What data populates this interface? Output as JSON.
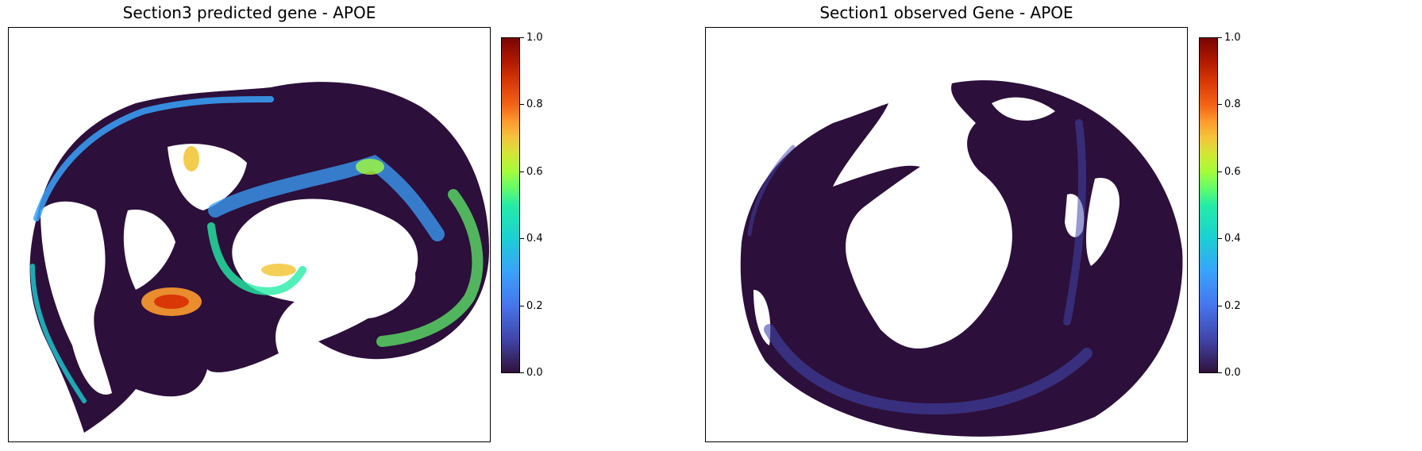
{
  "chart_data": [
    {
      "type": "heatmap",
      "title": "Section3 predicted gene - APOE",
      "xlabel": "",
      "ylabel": "",
      "colormap": "turbo",
      "colorbar": {
        "range": [
          0.0,
          1.0
        ],
        "ticks": [
          "0.0",
          "0.2",
          "0.4",
          "0.6",
          "0.8",
          "1.0"
        ]
      },
      "axes_ticks": "none",
      "grid": false
    },
    {
      "type": "heatmap",
      "title": "Section1 observed Gene - APOE",
      "xlabel": "",
      "ylabel": "",
      "colormap": "turbo",
      "colorbar": {
        "range": [
          0.0,
          1.0
        ],
        "ticks": [
          "0.0",
          "0.2",
          "0.4",
          "0.6",
          "0.8",
          "1.0"
        ]
      },
      "axes_ticks": "none",
      "grid": false
    }
  ],
  "colors": {
    "background_tissue": "#2c0f3a",
    "low": "#4145ab",
    "mid_low": "#39a2fc",
    "mid": "#1bcfd4",
    "mid_high": "#61fc6c",
    "high": "#fe9b2d",
    "max": "#d93806"
  }
}
